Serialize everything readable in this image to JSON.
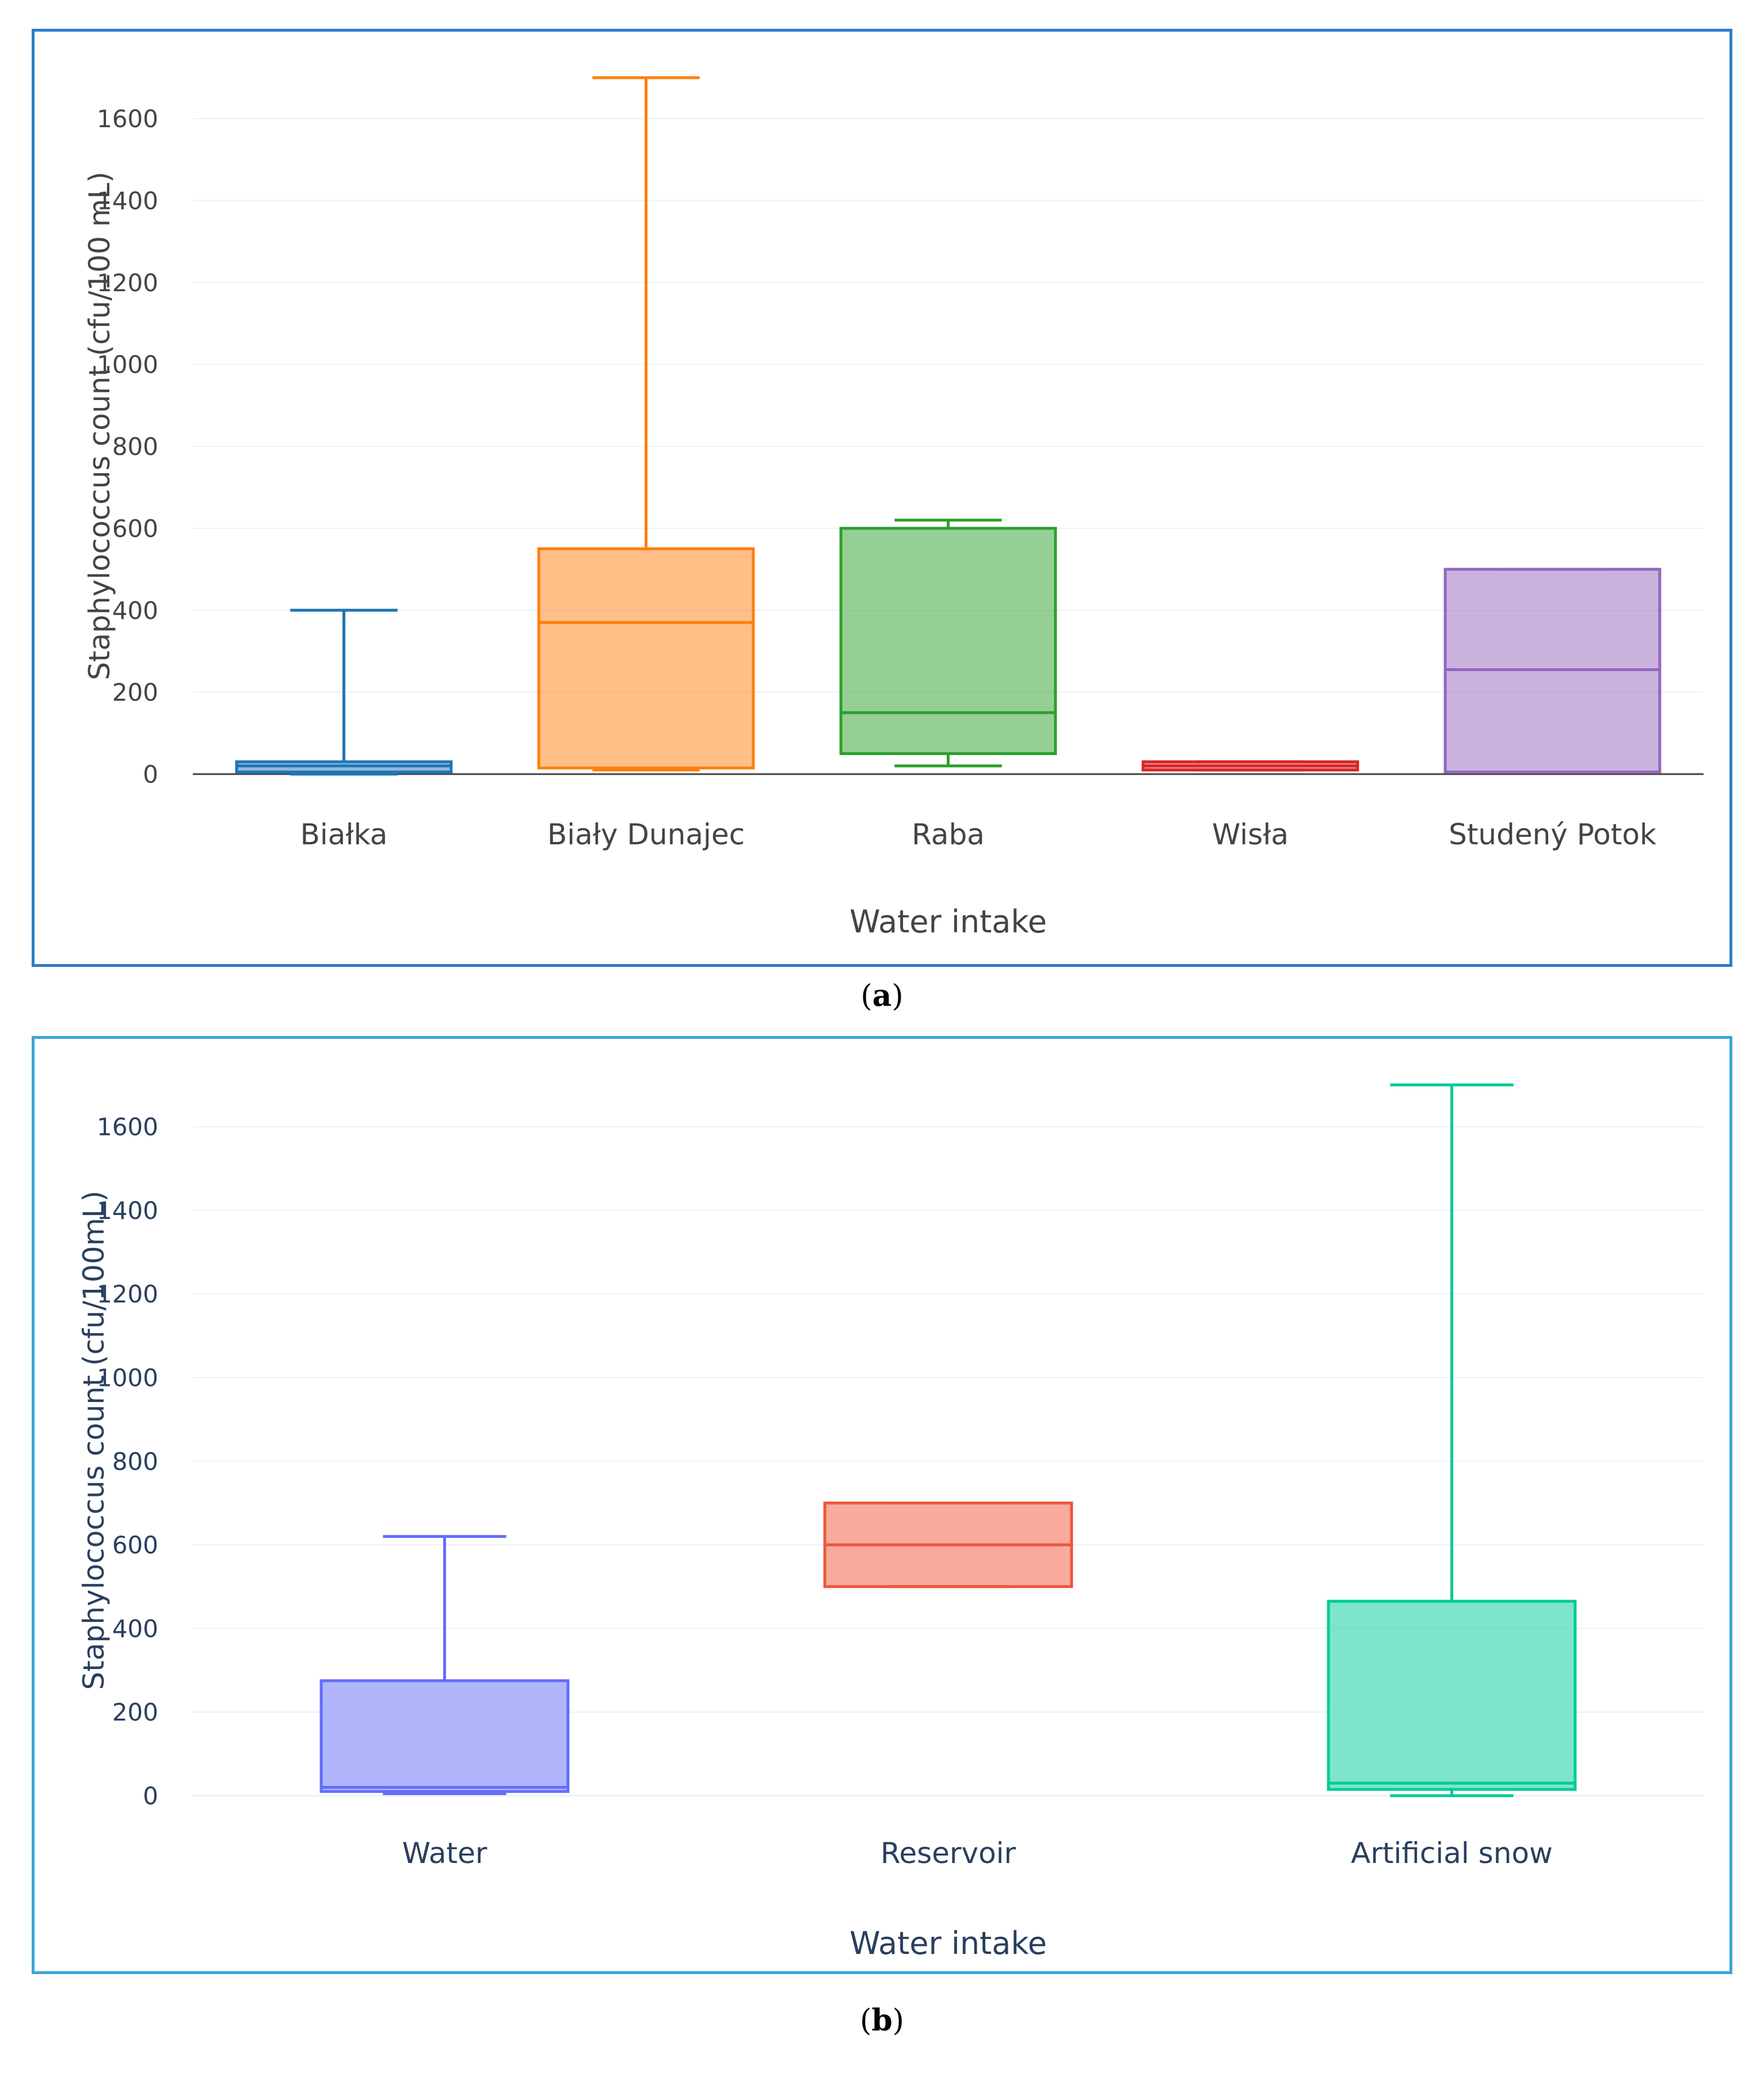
{
  "chart_data": [
    {
      "id": "a",
      "type": "box",
      "panel_label": "a",
      "title": "",
      "xlabel": "Water intake",
      "ylabel": "Staphylococcus count (cfu/100 mL)",
      "ylim": [
        0,
        1700
      ],
      "yticks": [
        0,
        200,
        400,
        600,
        800,
        1000,
        1200,
        1400,
        1600
      ],
      "grid": true,
      "text_color": "#444444",
      "categories": [
        "Białka",
        "Biały Dunajec",
        "Raba",
        "Wisła",
        "Studený Potok"
      ],
      "boxes": [
        {
          "name": "Białka",
          "min": 0,
          "q1": 5,
          "median": 20,
          "q3": 30,
          "max": 400,
          "color": "#1f77b4",
          "fill": "rgba(31,119,180,0.5)"
        },
        {
          "name": "Biały Dunajec",
          "min": 10,
          "q1": 15,
          "median": 370,
          "q3": 550,
          "max": 1700,
          "color": "#ff7f0e",
          "fill": "rgba(255,127,14,0.5)"
        },
        {
          "name": "Raba",
          "min": 20,
          "q1": 50,
          "median": 150,
          "q3": 600,
          "max": 620,
          "color": "#2ca02c",
          "fill": "rgba(44,160,44,0.5)"
        },
        {
          "name": "Wisła",
          "min": 10,
          "q1": 10,
          "median": 20,
          "q3": 30,
          "max": 30,
          "color": "#d62728",
          "fill": "rgba(214,39,40,0.5)"
        },
        {
          "name": "Studený Potok",
          "min": 5,
          "q1": 5,
          "median": 255,
          "q3": 500,
          "max": 500,
          "color": "#9467bd",
          "fill": "rgba(148,103,189,0.5)"
        }
      ]
    },
    {
      "id": "b",
      "type": "box",
      "panel_label": "b",
      "title": "",
      "xlabel": "Water intake",
      "ylabel": "Staphylococcus count (cfu/100mL)",
      "ylim": [
        0,
        1700
      ],
      "yticks": [
        0,
        200,
        400,
        600,
        800,
        1000,
        1200,
        1400,
        1600
      ],
      "grid": true,
      "text_color": "#2a3f5f",
      "categories": [
        "Water",
        "Reservoir",
        "Artificial snow"
      ],
      "boxes": [
        {
          "name": "Water",
          "min": 5,
          "q1": 10,
          "median": 20,
          "q3": 275,
          "max": 620,
          "color": "#636efa",
          "fill": "rgba(99,110,250,0.5)"
        },
        {
          "name": "Reservoir",
          "min": 500,
          "q1": 500,
          "median": 600,
          "q3": 700,
          "max": 700,
          "color": "#ef553b",
          "fill": "rgba(239,85,59,0.5)"
        },
        {
          "name": "Artificial snow",
          "min": 0,
          "q1": 15,
          "median": 30,
          "q3": 465,
          "max": 1700,
          "color": "#00cc96",
          "fill": "rgba(0,204,150,0.5)"
        }
      ]
    }
  ]
}
